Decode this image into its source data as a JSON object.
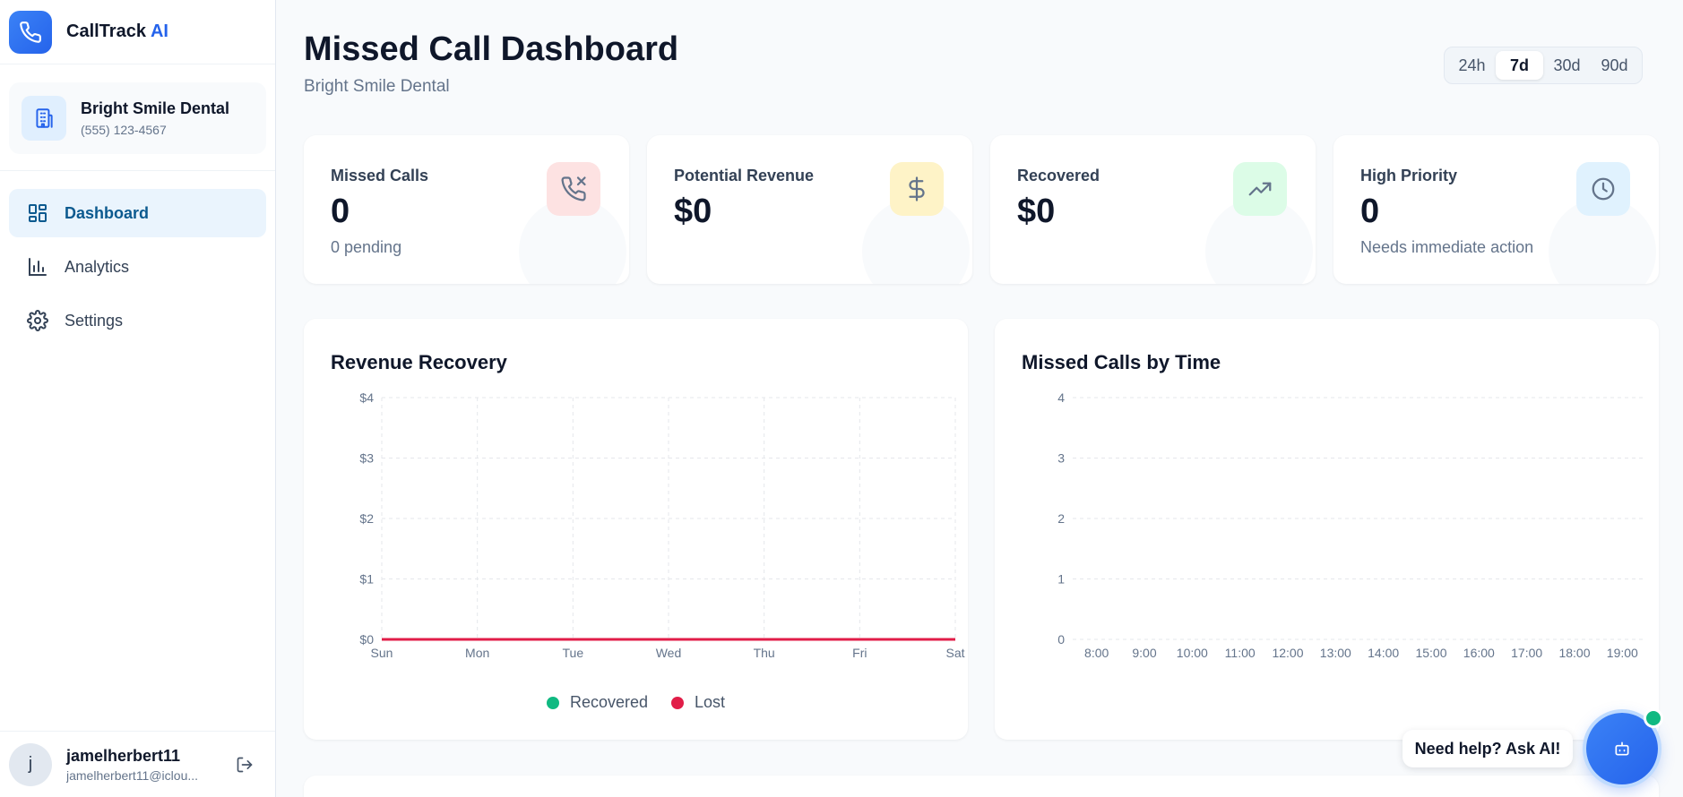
{
  "brand": {
    "name": "CallTrack",
    "suffix": "AI"
  },
  "practice": {
    "name": "Bright Smile Dental",
    "phone": "(555) 123-4567"
  },
  "nav": [
    {
      "label": "Dashboard",
      "icon": "dashboard-grid-icon",
      "active": true
    },
    {
      "label": "Analytics",
      "icon": "bar-chart-icon",
      "active": false
    },
    {
      "label": "Settings",
      "icon": "gear-icon",
      "active": false
    }
  ],
  "user": {
    "initial": "j",
    "name": "jamelherbert11",
    "email": "jamelherbert11@iclou..."
  },
  "header": {
    "title": "Missed Call Dashboard",
    "subtitle": "Bright Smile Dental"
  },
  "range": {
    "options": [
      "24h",
      "7d",
      "30d",
      "90d"
    ],
    "selected": "7d"
  },
  "stats": [
    {
      "label": "Missed Calls",
      "value": "0",
      "note": "0 pending",
      "icon": "phone-missed-icon",
      "icon_bg": "#fde2e2",
      "icon_color": "#64748b"
    },
    {
      "label": "Potential Revenue",
      "value": "$0",
      "note": "",
      "icon": "dollar-icon",
      "icon_bg": "#fef3c7",
      "icon_color": "#64748b"
    },
    {
      "label": "Recovered",
      "value": "$0",
      "note": "",
      "icon": "trending-up-icon",
      "icon_bg": "#dcfce7",
      "icon_color": "#64748b"
    },
    {
      "label": "High Priority",
      "value": "0",
      "note": "Needs immediate action",
      "icon": "clock-icon",
      "icon_bg": "#e0f2fe",
      "icon_color": "#64748b"
    }
  ],
  "chart_data": [
    {
      "type": "line",
      "title": "Revenue Recovery",
      "categories": [
        "Sun",
        "Mon",
        "Tue",
        "Wed",
        "Thu",
        "Fri",
        "Sat"
      ],
      "series": [
        {
          "name": "Recovered",
          "values": [
            0,
            0,
            0,
            0,
            0,
            0,
            0
          ],
          "color": "#10b981"
        },
        {
          "name": "Lost",
          "values": [
            0,
            0,
            0,
            0,
            0,
            0,
            0
          ],
          "color": "#e11d48"
        }
      ],
      "y_ticks": [
        "$0",
        "$1",
        "$2",
        "$3",
        "$4"
      ],
      "ylim": [
        0,
        4
      ],
      "grid": true,
      "legend": "bottom"
    },
    {
      "type": "bar",
      "title": "Missed Calls by Time",
      "categories": [
        "8:00",
        "9:00",
        "10:00",
        "11:00",
        "12:00",
        "13:00",
        "14:00",
        "15:00",
        "16:00",
        "17:00",
        "18:00",
        "19:00"
      ],
      "values": [
        0,
        0,
        0,
        0,
        0,
        0,
        0,
        0,
        0,
        0,
        0,
        0
      ],
      "y_ticks": [
        "0",
        "1",
        "2",
        "3",
        "4"
      ],
      "ylim": [
        0,
        4
      ],
      "grid": true
    }
  ],
  "help": {
    "label": "Need help? Ask AI!"
  },
  "colors": {
    "accent": "#2563eb",
    "active_nav_bg": "#eaf4fd",
    "online": "#10b981"
  }
}
